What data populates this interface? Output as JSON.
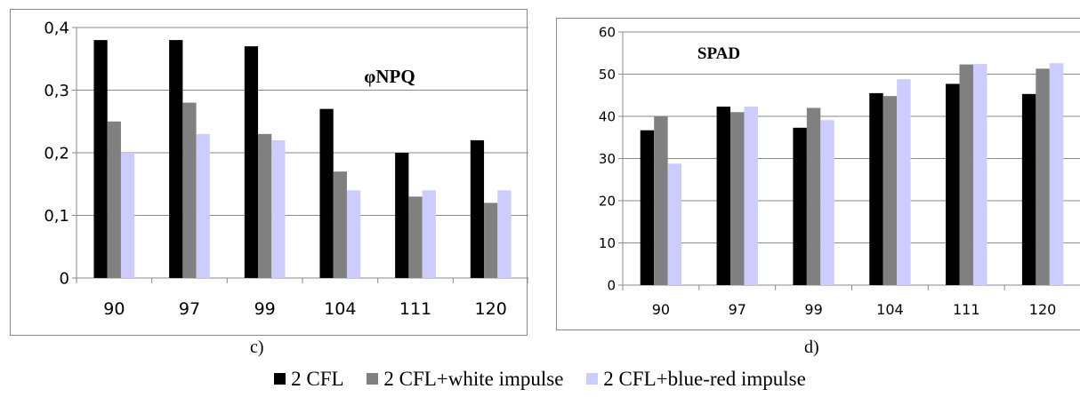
{
  "chart_data": [
    {
      "type": "bar",
      "title": "φNPQ",
      "caption": "c)",
      "categories": [
        "90",
        "97",
        "99",
        "104",
        "111",
        "120"
      ],
      "series": [
        {
          "name": "2 CFL",
          "color": "#000000",
          "values": [
            0.38,
            0.38,
            0.37,
            0.27,
            0.2,
            0.22
          ]
        },
        {
          "name": "2 CFL+white impulse",
          "color": "#808080",
          "values": [
            0.25,
            0.28,
            0.23,
            0.17,
            0.13,
            0.12
          ]
        },
        {
          "name": "2 CFL+blue-red impulse",
          "color": "#ccccff",
          "values": [
            0.2,
            0.23,
            0.22,
            0.14,
            0.14,
            0.14
          ]
        }
      ],
      "ylim": [
        0,
        0.4
      ],
      "yticks": [
        "0",
        "0,1",
        "0,2",
        "0,3",
        "0,4"
      ],
      "grid": true
    },
    {
      "type": "bar",
      "title": "SPAD",
      "caption": "d)",
      "categories": [
        "90",
        "97",
        "99",
        "104",
        "111",
        "120"
      ],
      "series": [
        {
          "name": "2 CFL",
          "color": "#000000",
          "values": [
            36.7,
            42.3,
            37.3,
            45.5,
            47.7,
            45.3
          ]
        },
        {
          "name": "2 CFL+white impulse",
          "color": "#808080",
          "values": [
            40.1,
            41.0,
            42.0,
            44.8,
            52.3,
            51.3
          ]
        },
        {
          "name": "2 CFL+blue-red impulse",
          "color": "#ccccff",
          "values": [
            28.8,
            42.3,
            39.1,
            48.8,
            52.4,
            52.6
          ]
        }
      ],
      "ylim": [
        0,
        60
      ],
      "yticks": [
        "0",
        "10",
        "20",
        "30",
        "40",
        "50",
        "60"
      ],
      "grid": true
    }
  ],
  "legend": [
    {
      "label": "2 CFL",
      "color": "#000000"
    },
    {
      "label": "2 CFL+white impulse",
      "color": "#808080"
    },
    {
      "label": "2 CFL+blue-red impulse",
      "color": "#ccccff"
    }
  ]
}
